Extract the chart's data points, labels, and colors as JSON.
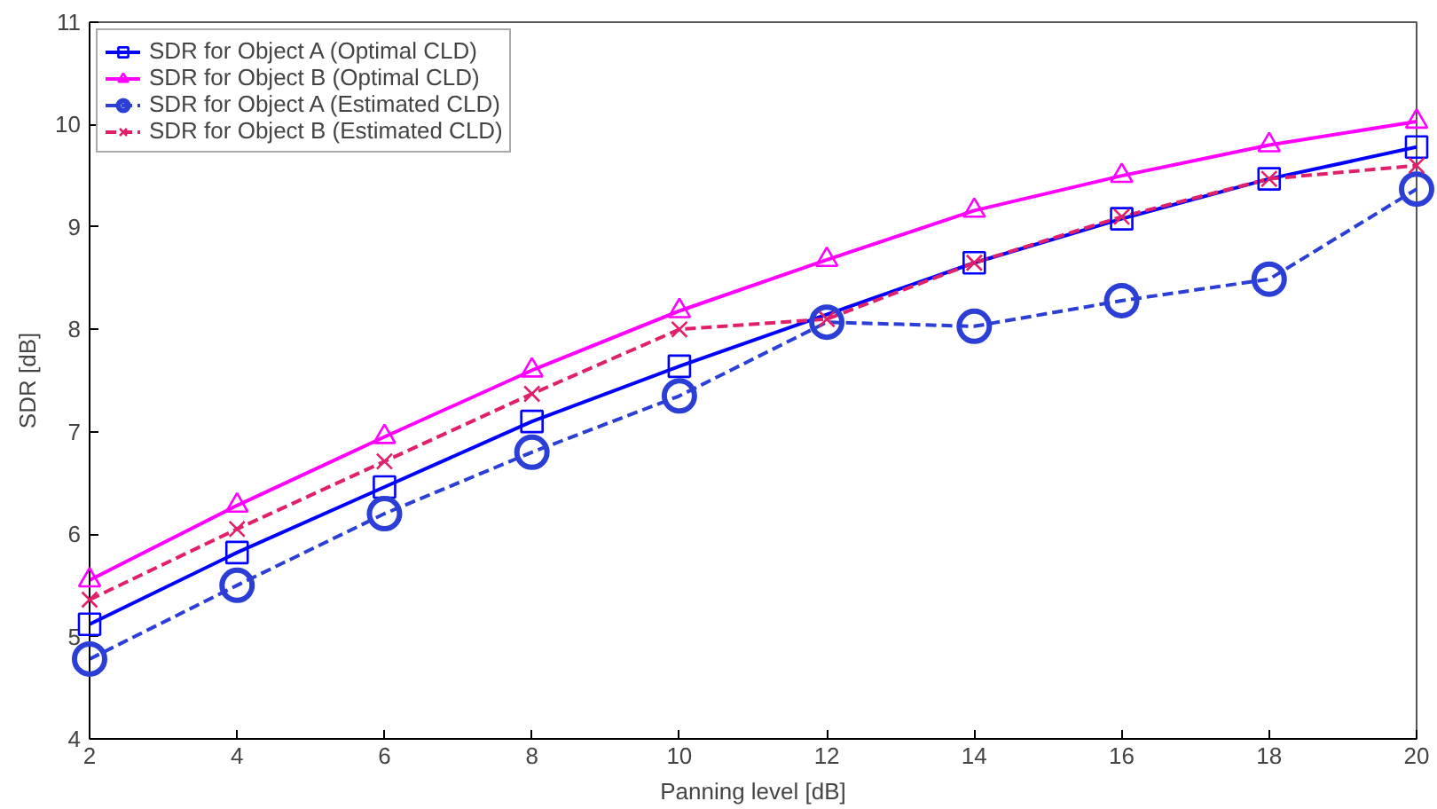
{
  "chart_data": {
    "type": "line",
    "xlabel": "Panning level [dB]",
    "ylabel": "SDR [dB]",
    "x": [
      2,
      4,
      6,
      8,
      10,
      12,
      14,
      16,
      18,
      20
    ],
    "xlim": [
      2,
      20
    ],
    "ylim": [
      4,
      11
    ],
    "xticks": [
      2,
      4,
      6,
      8,
      10,
      12,
      14,
      16,
      18,
      20
    ],
    "yticks": [
      4,
      5,
      6,
      7,
      8,
      9,
      10,
      11
    ],
    "grid": false,
    "legend": "top left",
    "series": [
      {
        "name": "SDR for Object A (Optimal CLD)",
        "color": "#0000ff",
        "marker": "square",
        "line_style": "solid",
        "values": [
          5.12,
          5.82,
          6.46,
          7.1,
          7.64,
          null,
          8.65,
          9.08,
          9.47,
          9.78
        ]
      },
      {
        "name": "SDR for Object B (Optimal CLD)",
        "color": "#ff00ff",
        "marker": "triangle",
        "line_style": "solid",
        "values": [
          5.55,
          6.28,
          6.95,
          7.6,
          8.18,
          8.68,
          9.16,
          9.5,
          9.8,
          10.03
        ]
      },
      {
        "name": "SDR for Object A (Estimated CLD)",
        "color": "#2b3fd6",
        "marker": "circle",
        "line_style": "dashed",
        "values": [
          4.78,
          5.5,
          6.2,
          6.8,
          7.35,
          8.07,
          8.03,
          8.28,
          8.49,
          9.37
        ]
      },
      {
        "name": "SDR for Object B (Estimated CLD)",
        "color": "#e0206a",
        "marker": "cross",
        "line_style": "dashed",
        "values": [
          5.36,
          6.05,
          6.71,
          7.37,
          8.0,
          8.1,
          8.65,
          9.1,
          9.47,
          9.6
        ]
      }
    ]
  }
}
